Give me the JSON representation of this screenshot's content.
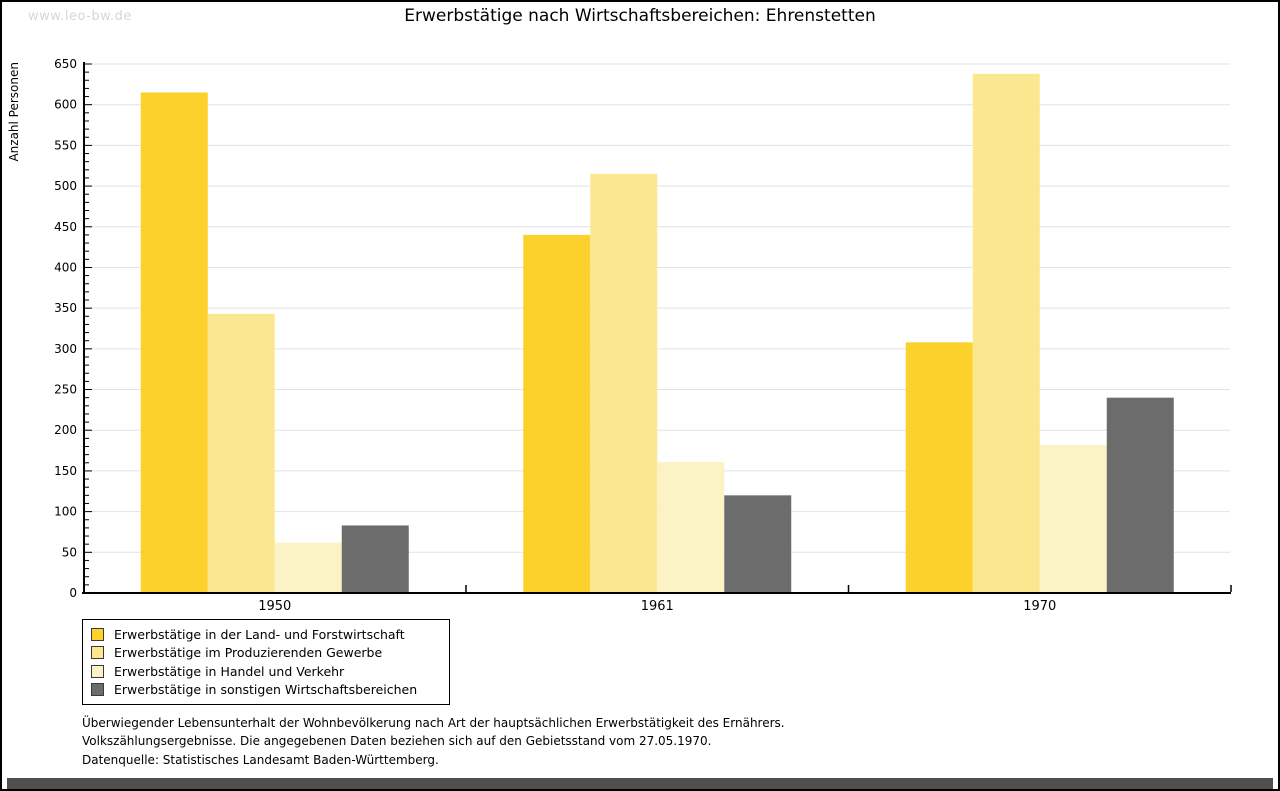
{
  "watermark": "www.leo-bw.de",
  "footer": {
    "line1": "Überwiegender Lebensunterhalt der Wohnbevölkerung nach Art der hauptsächlichen Erwerbstätigkeit des Ernährers.",
    "line2": "Volkszählungsergebnisse. Die angegebenen Daten beziehen sich auf den Gebietsstand vom 27.05.1970.",
    "source": "Datenquelle: Statistisches Landesamt Baden-Württemberg."
  },
  "colors": {
    "grid": "#e2e2e2",
    "axis": "#000000",
    "watermark": "#d6d6d6",
    "bottom_bar": "#4f4f4f"
  },
  "chart_data": {
    "type": "bar",
    "title": "Erwerbstätige nach Wirtschaftsbereichen: Ehrenstetten",
    "xlabel": "",
    "ylabel": "Anzahl Personen",
    "categories": [
      "1950",
      "1961",
      "1970"
    ],
    "series": [
      {
        "name": "Erwerbstätige in der Land- und Forstwirtschaft",
        "color": "#FCD12B",
        "values": [
          615,
          440,
          308
        ]
      },
      {
        "name": "Erwerbstätige im Produzierenden Gewerbe",
        "color": "#FAE78F",
        "values": [
          343,
          515,
          638
        ]
      },
      {
        "name": "Erwerbstätige in Handel und Verkehr",
        "color": "#FBF2C6",
        "values": [
          62,
          161,
          182
        ]
      },
      {
        "name": "Erwerbstätige in sonstigen Wirtschaftsbereichen",
        "color": "#6C6C6C",
        "values": [
          83,
          120,
          240
        ]
      }
    ],
    "ylim": [
      0,
      650
    ],
    "ytick_step": 50,
    "ytick_minor_step": 10,
    "grid": true,
    "legend_position": "bottom-left"
  }
}
